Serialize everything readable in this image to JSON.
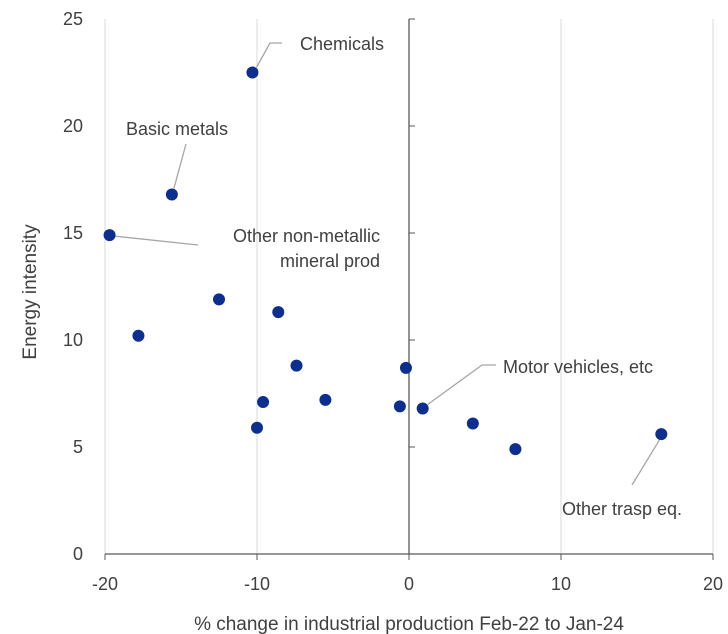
{
  "chart_data": {
    "type": "scatter",
    "xlabel": "% change in industrial production Feb-22 to Jan-24",
    "ylabel": "Energy intensity",
    "xlim": [
      -20,
      20
    ],
    "ylim": [
      0,
      25
    ],
    "xticks": [
      -20,
      -10,
      0,
      10,
      20
    ],
    "yticks": [
      0,
      5,
      10,
      15,
      20,
      25
    ],
    "grid": "vertical-only",
    "colors": {
      "marker": "#0b2e8f",
      "grid": "#d9d9d9",
      "axis": "#595959",
      "leader": "#a6a6a6",
      "text": "#404040"
    },
    "points": [
      {
        "x": -10.3,
        "y": 22.5
      },
      {
        "x": -15.6,
        "y": 16.8
      },
      {
        "x": -19.7,
        "y": 14.9
      },
      {
        "x": -12.5,
        "y": 11.9
      },
      {
        "x": -17.8,
        "y": 10.2
      },
      {
        "x": -8.6,
        "y": 11.3
      },
      {
        "x": -7.4,
        "y": 8.8
      },
      {
        "x": -0.2,
        "y": 8.7
      },
      {
        "x": -9.6,
        "y": 7.1
      },
      {
        "x": -5.5,
        "y": 7.2
      },
      {
        "x": -0.6,
        "y": 6.9
      },
      {
        "x": 0.9,
        "y": 6.8
      },
      {
        "x": 4.2,
        "y": 6.1
      },
      {
        "x": -10.0,
        "y": 5.9
      },
      {
        "x": 7.0,
        "y": 4.9
      },
      {
        "x": 16.6,
        "y": 5.6
      }
    ],
    "annotations": [
      {
        "text": "Chemicals",
        "x": -10.3,
        "y": 22.5
      },
      {
        "text": "Basic metals",
        "x": -15.6,
        "y": 16.8
      },
      {
        "text": "Other non-metallic",
        "text2": "mineral prod",
        "x": -19.7,
        "y": 14.9
      },
      {
        "text": "Motor vehicles, etc",
        "x": 0.9,
        "y": 6.8
      },
      {
        "text": "Other trasp eq.",
        "x": 16.6,
        "y": 5.6
      }
    ]
  }
}
